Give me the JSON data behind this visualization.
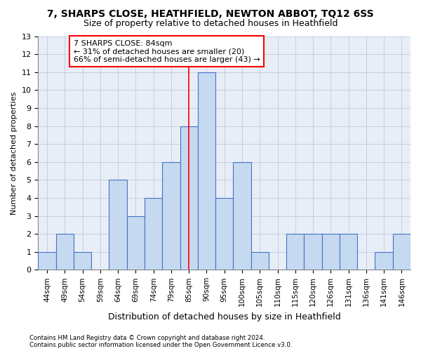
{
  "title1": "7, SHARPS CLOSE, HEATHFIELD, NEWTON ABBOT, TQ12 6SS",
  "title2": "Size of property relative to detached houses in Heathfield",
  "xlabel": "Distribution of detached houses by size in Heathfield",
  "ylabel": "Number of detached properties",
  "categories": [
    "44sqm",
    "49sqm",
    "54sqm",
    "59sqm",
    "64sqm",
    "69sqm",
    "74sqm",
    "79sqm",
    "85sqm",
    "90sqm",
    "95sqm",
    "100sqm",
    "105sqm",
    "110sqm",
    "115sqm",
    "120sqm",
    "126sqm",
    "131sqm",
    "136sqm",
    "141sqm",
    "146sqm"
  ],
  "values": [
    1,
    2,
    1,
    0,
    5,
    3,
    4,
    6,
    8,
    11,
    4,
    6,
    1,
    0,
    2,
    2,
    2,
    2,
    0,
    1,
    2
  ],
  "bar_color": "#c5d9f1",
  "bar_edge_color": "#4472c4",
  "subject_line_color": "red",
  "annotation_text": "7 SHARPS CLOSE: 84sqm\n← 31% of detached houses are smaller (20)\n66% of semi-detached houses are larger (43) →",
  "annotation_box_color": "white",
  "annotation_box_edge_color": "red",
  "ylim": [
    0,
    13
  ],
  "yticks": [
    0,
    1,
    2,
    3,
    4,
    5,
    6,
    7,
    8,
    9,
    10,
    11,
    12,
    13
  ],
  "footer1": "Contains HM Land Registry data © Crown copyright and database right 2024.",
  "footer2": "Contains public sector information licensed under the Open Government Licence v3.0.",
  "bg_color": "#e8eef8",
  "grid_color": "#b0b8cc",
  "title1_fontsize": 10,
  "title2_fontsize": 9,
  "annotation_fontsize": 8
}
